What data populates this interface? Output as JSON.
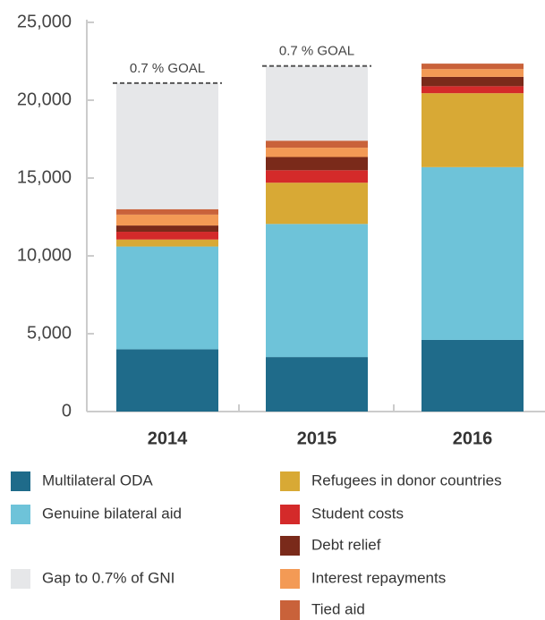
{
  "chart_data": {
    "type": "stacked_bar",
    "categories": [
      "2014",
      "2015",
      "2016"
    ],
    "goal_label": "0.7 % GOAL",
    "series": [
      {
        "name": "Multilateral ODA",
        "color": "#1f6b8a",
        "values": [
          4000,
          3500,
          4600
        ]
      },
      {
        "name": "Genuine bilateral aid",
        "color": "#6ec3d9",
        "values": [
          6600,
          8550,
          11100
        ]
      },
      {
        "name": "Refugees in donor countries",
        "color": "#d8a935",
        "values": [
          450,
          2650,
          4750
        ]
      },
      {
        "name": "Student costs",
        "color": "#d42a2a",
        "values": [
          500,
          800,
          450
        ]
      },
      {
        "name": "Debt relief",
        "color": "#7a2a1a",
        "values": [
          400,
          850,
          600
        ]
      },
      {
        "name": "Interest repayments",
        "color": "#f39a55",
        "values": [
          700,
          600,
          500
        ]
      },
      {
        "name": "Tied aid",
        "color": "#c9623a",
        "values": [
          350,
          450,
          350
        ]
      },
      {
        "name": "Gap to 0.7% of GNI",
        "color": "#e6e7e9",
        "values": [
          8100,
          4800,
          0
        ]
      }
    ],
    "ylim": [
      0,
      25000
    ],
    "yticks": [
      0,
      {
        "value": 5000,
        "label": "5,000"
      },
      {
        "value": 10000,
        "label": "10,000"
      },
      {
        "value": 15000,
        "label": "15,000"
      },
      {
        "value": 20000,
        "label": "20,000"
      },
      {
        "value": 25000,
        "label": "25,000"
      }
    ]
  }
}
